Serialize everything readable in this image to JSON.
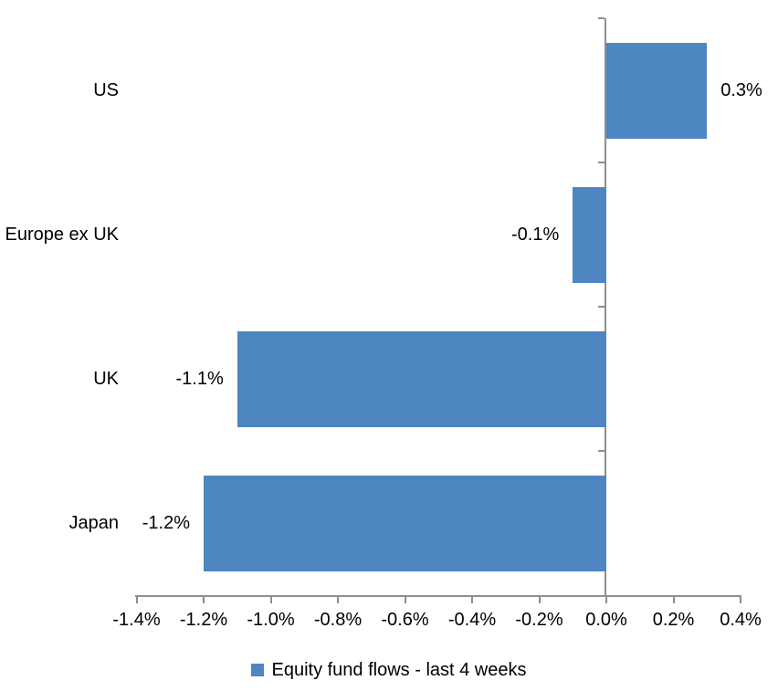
{
  "chart_data": {
    "type": "bar",
    "orientation": "horizontal",
    "title": "",
    "xlabel": "",
    "ylabel": "",
    "categories": [
      "US",
      "Europe ex UK",
      "UK",
      "Japan"
    ],
    "values": [
      0.3,
      -0.1,
      -1.1,
      -1.2
    ],
    "value_labels": [
      "0.3%",
      "-0.1%",
      "-1.1%",
      "-1.2%"
    ],
    "series": [
      {
        "name": "Equity fund flows - last 4 weeks",
        "values": [
          0.3,
          -0.1,
          -1.1,
          -1.2
        ]
      }
    ],
    "xlim": [
      -1.4,
      0.4
    ],
    "x_ticks": [
      -1.4,
      -1.2,
      -1.0,
      -0.8,
      -0.6,
      -0.4,
      -0.2,
      0.0,
      0.2,
      0.4
    ],
    "x_tick_labels": [
      "-1.4%",
      "-1.2%",
      "-1.0%",
      "-0.8%",
      "-0.6%",
      "-0.4%",
      "-0.2%",
      "0.0%",
      "0.2%",
      "0.4%"
    ],
    "grid": false,
    "legend": {
      "position": "bottom",
      "marker": "square-icon",
      "label": "Equity fund flows - last 4 weeks"
    },
    "colors": {
      "bar": "#4d86c0",
      "axis": "#8f8f8f",
      "text": "#000000",
      "background": "#ffffff"
    }
  }
}
